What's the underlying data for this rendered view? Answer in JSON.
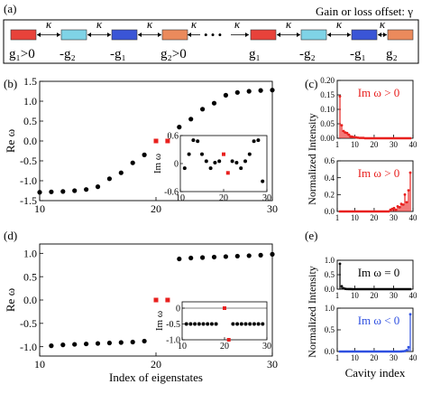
{
  "panel_labels": {
    "a": "(a)",
    "b": "(b)",
    "c": "(c)",
    "d": "(d)",
    "e": "(e)"
  },
  "schematic": {
    "title": "Gain or loss offset: γ",
    "coupling_label": "κ",
    "dots": "• • •",
    "cavities": [
      {
        "label": "g₁>0",
        "color": "#e8423a"
      },
      {
        "label": "-g₂",
        "color": "#7fd3e6"
      },
      {
        "label": "-g₁",
        "color": "#3a55d6"
      },
      {
        "label": "g₂>0",
        "color": "#eb8a5c"
      },
      {
        "label": "g₁",
        "color": "#e8423a"
      },
      {
        "label": "-g₂",
        "color": "#7fd3e6"
      },
      {
        "label": "-g₁",
        "color": "#3a55d6"
      },
      {
        "label": "g₂",
        "color": "#eb8a5c"
      }
    ]
  },
  "chart_data": [
    {
      "id": "b",
      "type": "scatter",
      "ylabel": "Re ω",
      "xlabel": "",
      "xlim": [
        10,
        30
      ],
      "ylim": [
        -1.5,
        1.5
      ],
      "xticks": [
        "10",
        "20",
        "30"
      ],
      "yticks": [
        "-1.5",
        "-1.0",
        "-0.5",
        "0.0",
        "0.5",
        "1.0",
        "1.5"
      ],
      "series": [
        {
          "color": "#000000",
          "x": [
            10,
            11,
            12,
            13,
            14,
            15,
            16,
            17,
            18,
            19,
            22,
            23,
            24,
            25,
            26,
            27,
            28,
            29,
            30
          ],
          "y": [
            -1.29,
            -1.28,
            -1.27,
            -1.25,
            -1.22,
            -1.15,
            -0.95,
            -0.8,
            -0.55,
            -0.35,
            0.35,
            0.55,
            0.8,
            0.95,
            1.15,
            1.22,
            1.25,
            1.27,
            1.28
          ]
        },
        {
          "color": "#e8201e",
          "x": [
            20,
            21
          ],
          "y": [
            0.0,
            0.0
          ]
        }
      ],
      "inset": {
        "ylabel": "Im ω",
        "xlim": [
          10,
          30
        ],
        "ylim": [
          -0.6,
          0.6
        ],
        "xticks": [
          "10",
          "20",
          "30"
        ],
        "yticks": [
          "0.6",
          "0",
          "-0.6"
        ],
        "series": [
          {
            "color": "#000000",
            "x": [
              11,
              12,
              13,
              14,
              15,
              16,
              17,
              18,
              19,
              22,
              23,
              24,
              25,
              26,
              27,
              28,
              29
            ],
            "y": [
              -0.1,
              0.2,
              0.5,
              0.48,
              0.2,
              0.05,
              -0.1,
              0.02,
              0.05,
              0.05,
              0.02,
              -0.1,
              0.05,
              0.2,
              0.48,
              0.5,
              -0.38
            ]
          },
          {
            "color": "#e8201e",
            "x": [
              20,
              21
            ],
            "y": [
              0.2,
              -0.2
            ]
          }
        ]
      }
    },
    {
      "id": "c_top",
      "type": "bar",
      "ylabel": "Normalized Intensity",
      "xlabel": "",
      "annotation": "Im ω > 0",
      "xlim": [
        1,
        40
      ],
      "ylim": [
        0,
        0.2
      ],
      "xticks": [
        "1",
        "10",
        "20",
        "30",
        "40"
      ],
      "yticks": [
        "0.00",
        "0.05",
        "0.10",
        "0.15",
        "0.20"
      ],
      "series": [
        {
          "color": "#e8201e",
          "x": [
            1,
            2,
            3,
            4,
            5,
            6,
            7,
            8,
            9,
            10,
            11,
            12,
            13,
            14,
            15,
            16,
            17,
            18,
            19,
            20,
            21,
            22,
            23,
            24,
            25,
            26,
            27,
            28,
            29,
            30,
            31,
            32,
            33,
            34,
            35,
            36,
            37,
            38,
            39,
            40
          ],
          "y": [
            0.145,
            0.045,
            0.025,
            0.02,
            0.018,
            0.012,
            0.006,
            0.005,
            0.004,
            0.003,
            0.002,
            0.001,
            0.001,
            0.001,
            0,
            0,
            0,
            0,
            0,
            0,
            0,
            0,
            0,
            0,
            0,
            0,
            0,
            0,
            0,
            0,
            0,
            0,
            0,
            0,
            0,
            0,
            0,
            0,
            0,
            0
          ]
        }
      ]
    },
    {
      "id": "c_bottom",
      "type": "bar",
      "ylabel": "",
      "xlabel": "",
      "annotation": "Im ω > 0",
      "xlim": [
        1,
        40
      ],
      "ylim": [
        0,
        0.6
      ],
      "xticks": [
        "1",
        "10",
        "20",
        "30",
        "40"
      ],
      "yticks": [
        "0.0",
        "0.2",
        "0.4",
        "0.6"
      ],
      "series": [
        {
          "color": "#e8201e",
          "x": [
            1,
            2,
            3,
            4,
            5,
            6,
            7,
            8,
            9,
            10,
            11,
            12,
            13,
            14,
            15,
            16,
            17,
            18,
            19,
            20,
            21,
            22,
            23,
            24,
            25,
            26,
            27,
            28,
            29,
            30,
            31,
            32,
            33,
            34,
            35,
            36,
            37,
            38,
            39,
            40
          ],
          "y": [
            0,
            0,
            0,
            0,
            0,
            0,
            0,
            0,
            0,
            0,
            0,
            0,
            0,
            0,
            0,
            0,
            0,
            0,
            0,
            0,
            0,
            0,
            0,
            0,
            0,
            0,
            0,
            0,
            0.02,
            0.03,
            0.04,
            0.02,
            0.06,
            0.05,
            0.09,
            0.08,
            0.2,
            0.11,
            0.25,
            0.46
          ]
        }
      ]
    },
    {
      "id": "d",
      "type": "scatter",
      "ylabel": "Re ω",
      "xlabel": "Index of eigenstates",
      "xlim": [
        10,
        30
      ],
      "ylim": [
        -1.2,
        1.2
      ],
      "xticks": [
        "10",
        "20",
        "30"
      ],
      "yticks": [
        "-1.0",
        "-0.5",
        "0.0",
        "0.5",
        "1.0"
      ],
      "series": [
        {
          "color": "#000000",
          "x": [
            11,
            12,
            13,
            14,
            15,
            16,
            17,
            18,
            19,
            22,
            23,
            24,
            25,
            26,
            27,
            28,
            29,
            30
          ],
          "y": [
            -0.98,
            -0.96,
            -0.95,
            -0.94,
            -0.93,
            -0.92,
            -0.91,
            -0.9,
            -0.88,
            0.88,
            0.9,
            0.91,
            0.92,
            0.93,
            0.94,
            0.95,
            0.96,
            0.98
          ]
        },
        {
          "color": "#e8201e",
          "x": [
            20,
            21
          ],
          "y": [
            0.0,
            0.0
          ]
        }
      ],
      "inset": {
        "ylabel": "Im ω",
        "xlim": [
          10,
          30
        ],
        "ylim": [
          -1.0,
          0.2
        ],
        "xticks": [
          "10",
          "20",
          "30"
        ],
        "yticks": [
          "0",
          "-0.5",
          "-1.0"
        ],
        "series": [
          {
            "color": "#000000",
            "x": [
              11,
              12,
              13,
              14,
              15,
              16,
              17,
              18,
              22,
              23,
              24,
              25,
              26,
              27,
              28,
              29
            ],
            "y": [
              -0.5,
              -0.5,
              -0.5,
              -0.5,
              -0.5,
              -0.5,
              -0.5,
              -0.5,
              -0.5,
              -0.5,
              -0.5,
              -0.5,
              -0.5,
              -0.5,
              -0.5,
              -0.5
            ]
          },
          {
            "color": "#e8201e",
            "x": [
              20,
              21
            ],
            "y": [
              0.0,
              -1.0
            ]
          }
        ]
      }
    },
    {
      "id": "e_top",
      "type": "bar",
      "ylabel": "Normalized Intensity",
      "xlabel": "",
      "annotation": "Im ω = 0",
      "xlim": [
        1,
        40
      ],
      "ylim": [
        0,
        1.0
      ],
      "xticks": [
        "1",
        "10",
        "20",
        "30",
        "40"
      ],
      "yticks": [
        "0.0",
        "0.5",
        "1.0"
      ],
      "series": [
        {
          "color": "#000000",
          "x": [
            1,
            2,
            3,
            4,
            5,
            6,
            7,
            8,
            9,
            10,
            11,
            12,
            13,
            14,
            15,
            16,
            17,
            18,
            19,
            20,
            21,
            22,
            23,
            24,
            25,
            26,
            27,
            28,
            29,
            30,
            31,
            32,
            33,
            34,
            35,
            36,
            37,
            38,
            39,
            40
          ],
          "y": [
            0.88,
            0.1,
            0.03,
            0.01,
            0.005,
            0.003,
            0.002,
            0.001,
            0,
            0,
            0,
            0,
            0,
            0,
            0,
            0,
            0,
            0,
            0,
            0,
            0,
            0,
            0,
            0,
            0,
            0,
            0,
            0,
            0,
            0,
            0,
            0,
            0,
            0,
            0,
            0,
            0,
            0,
            0,
            0
          ]
        }
      ]
    },
    {
      "id": "e_bottom",
      "type": "bar",
      "ylabel": "",
      "xlabel": "Cavity index",
      "annotation": "Im ω < 0",
      "xlim": [
        1,
        40
      ],
      "ylim": [
        0,
        1.0
      ],
      "xticks": [
        "1",
        "10",
        "20",
        "30",
        "40"
      ],
      "yticks": [
        "0.0",
        "0.5",
        "1.0"
      ],
      "series": [
        {
          "color": "#2f50e0",
          "x": [
            1,
            2,
            3,
            4,
            5,
            6,
            7,
            8,
            9,
            10,
            11,
            12,
            13,
            14,
            15,
            16,
            17,
            18,
            19,
            20,
            21,
            22,
            23,
            24,
            25,
            26,
            27,
            28,
            29,
            30,
            31,
            32,
            33,
            34,
            35,
            36,
            37,
            38,
            39,
            40
          ],
          "y": [
            0,
            0,
            0,
            0,
            0,
            0,
            0,
            0,
            0,
            0,
            0,
            0,
            0,
            0,
            0,
            0,
            0,
            0,
            0,
            0,
            0,
            0,
            0,
            0,
            0,
            0,
            0,
            0,
            0,
            0,
            0,
            0,
            0,
            0,
            0.002,
            0.005,
            0.01,
            0.03,
            0.1,
            0.86
          ]
        }
      ]
    }
  ]
}
